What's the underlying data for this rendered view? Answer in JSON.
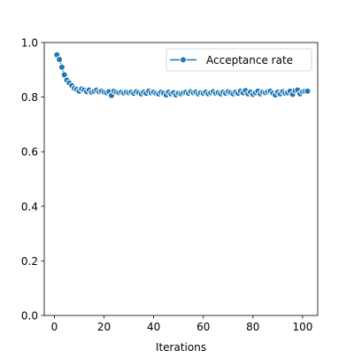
{
  "chart_data": {
    "type": "line",
    "title": "",
    "xlabel": "Iterations",
    "ylabel": "",
    "xlim": [
      -4.1,
      106.1
    ],
    "ylim": [
      0.0,
      1.0
    ],
    "x_ticks": [
      0,
      20,
      40,
      60,
      80,
      100
    ],
    "y_ticks": [
      0.0,
      0.2,
      0.4,
      0.6,
      0.8,
      1.0
    ],
    "x_tick_labels": [
      "0",
      "20",
      "40",
      "60",
      "80",
      "100"
    ],
    "y_tick_labels": [
      "0.0",
      "0.2",
      "0.4",
      "0.6",
      "0.8",
      "1.0"
    ],
    "grid": false,
    "legend": {
      "position": "upper right"
    },
    "series": [
      {
        "name": "Acceptance rate",
        "color": "#1f77b4",
        "marker": "circle",
        "x": [
          1,
          2,
          3,
          4,
          5,
          6,
          7,
          8,
          9,
          10,
          11,
          12,
          13,
          14,
          15,
          16,
          17,
          18,
          19,
          20,
          21,
          22,
          23,
          24,
          25,
          26,
          27,
          28,
          29,
          30,
          31,
          32,
          33,
          34,
          35,
          36,
          37,
          38,
          39,
          40,
          41,
          42,
          43,
          44,
          45,
          46,
          47,
          48,
          49,
          50,
          51,
          52,
          53,
          54,
          55,
          56,
          57,
          58,
          59,
          60,
          61,
          62,
          63,
          64,
          65,
          66,
          67,
          68,
          69,
          70,
          71,
          72,
          73,
          74,
          75,
          76,
          77,
          78,
          79,
          80,
          81,
          82,
          83,
          84,
          85,
          86,
          87,
          88,
          89,
          90,
          91,
          92,
          93,
          94,
          95,
          96,
          97,
          98,
          99,
          100,
          101,
          102
        ],
        "values": [
          0.955,
          0.938,
          0.91,
          0.882,
          0.862,
          0.852,
          0.842,
          0.832,
          0.828,
          0.822,
          0.83,
          0.826,
          0.82,
          0.826,
          0.818,
          0.822,
          0.826,
          0.82,
          0.822,
          0.818,
          0.816,
          0.82,
          0.806,
          0.822,
          0.818,
          0.816,
          0.818,
          0.815,
          0.818,
          0.816,
          0.818,
          0.814,
          0.82,
          0.816,
          0.812,
          0.818,
          0.814,
          0.822,
          0.816,
          0.818,
          0.814,
          0.812,
          0.818,
          0.814,
          0.808,
          0.818,
          0.812,
          0.816,
          0.808,
          0.814,
          0.812,
          0.816,
          0.818,
          0.814,
          0.82,
          0.816,
          0.818,
          0.812,
          0.816,
          0.814,
          0.818,
          0.812,
          0.816,
          0.82,
          0.814,
          0.816,
          0.812,
          0.818,
          0.814,
          0.82,
          0.816,
          0.812,
          0.818,
          0.814,
          0.822,
          0.816,
          0.824,
          0.812,
          0.818,
          0.81,
          0.816,
          0.822,
          0.812,
          0.818,
          0.816,
          0.82,
          0.822,
          0.814,
          0.808,
          0.818,
          0.812,
          0.82,
          0.814,
          0.816,
          0.822,
          0.81,
          0.824,
          0.826,
          0.812,
          0.82,
          0.822,
          0.822
        ]
      }
    ]
  }
}
